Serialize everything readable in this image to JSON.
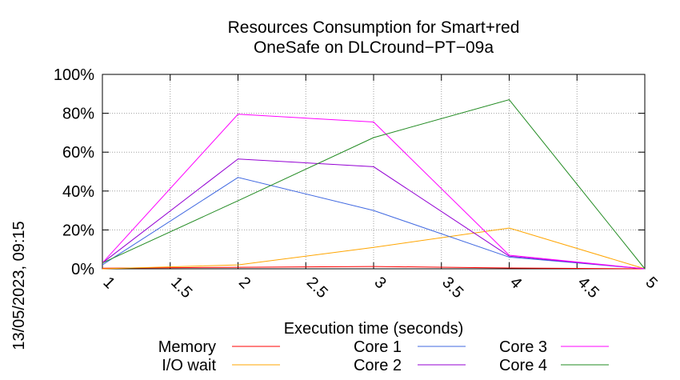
{
  "chart_data": {
    "type": "line",
    "title_lines": [
      "Resources Consumption for Smart+red",
      "OneSafe on DLCround−PT−09a"
    ],
    "xlabel": "Execution time (seconds)",
    "ylabel": "",
    "side_label": "13/05/2023, 09:15",
    "x_ticks": [
      "1",
      "1.5",
      "2",
      "2.5",
      "3",
      "3.5",
      "4",
      "4.5",
      "5"
    ],
    "y_ticks": [
      "0%",
      "20%",
      "40%",
      "60%",
      "80%",
      "100%"
    ],
    "xlim": [
      1,
      5
    ],
    "ylim": [
      0,
      100
    ],
    "grid": true,
    "legend_position": "bottom",
    "x": [
      1,
      2,
      3,
      4,
      5
    ],
    "series": [
      {
        "name": "Memory",
        "color": "#ff0000",
        "values": [
          0.3,
          0.8,
          1.2,
          0.4,
          0
        ]
      },
      {
        "name": "I/O wait",
        "color": "#ffa500",
        "values": [
          0,
          2,
          11,
          21,
          0
        ]
      },
      {
        "name": "Core 1",
        "color": "#4169e1",
        "values": [
          2,
          47,
          30,
          6,
          0
        ]
      },
      {
        "name": "Core 2",
        "color": "#9400d3",
        "values": [
          3,
          56.5,
          52.5,
          6.5,
          0
        ]
      },
      {
        "name": "Core 3",
        "color": "#ff00ff",
        "values": [
          3,
          79.5,
          75.5,
          7,
          0
        ]
      },
      {
        "name": "Core 4",
        "color": "#228b22",
        "values": [
          3,
          35,
          67.5,
          87,
          0
        ]
      }
    ]
  }
}
